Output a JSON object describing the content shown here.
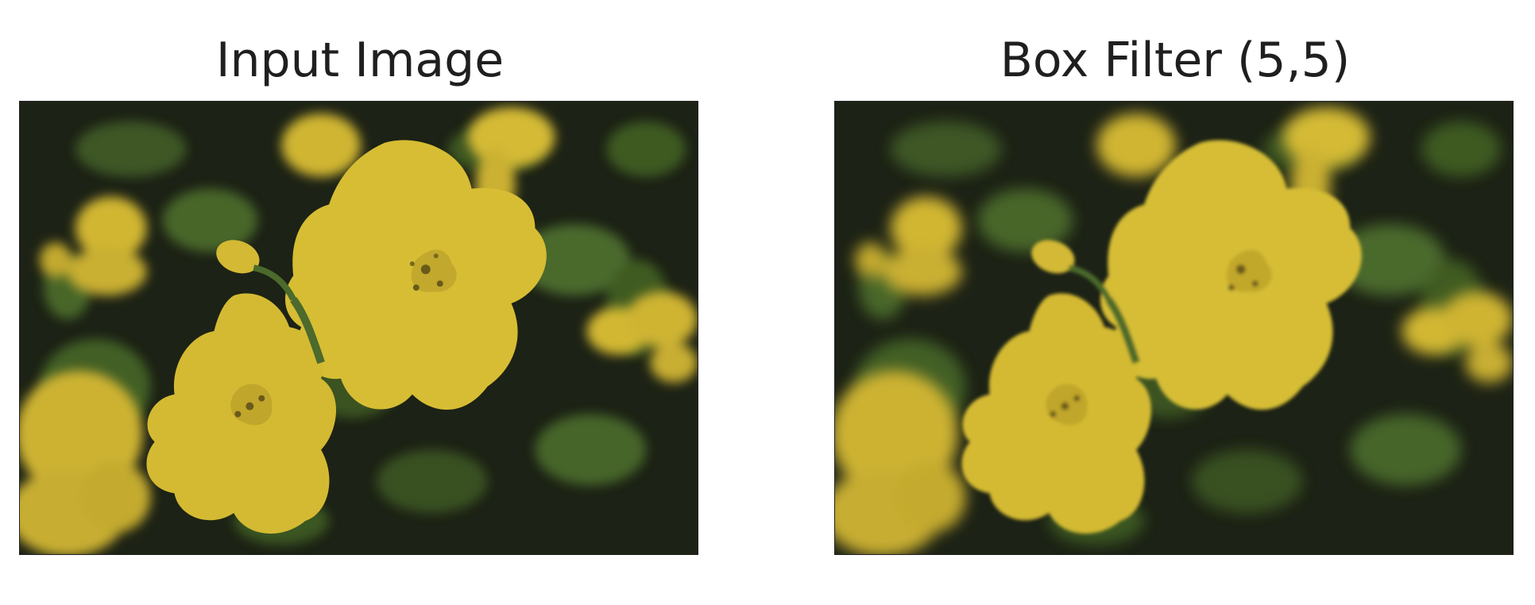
{
  "figure": {
    "panels": [
      {
        "title": "Input Image"
      },
      {
        "title": "Box Filter (5,5)"
      }
    ]
  },
  "colors": {
    "background": "#1c2215",
    "foliage": "#4b6a2c",
    "foliage_light": "#5d7f33",
    "petal": "#d6bd34",
    "petal_shade": "#c2a82c",
    "stamen": "#6a5a1a"
  }
}
